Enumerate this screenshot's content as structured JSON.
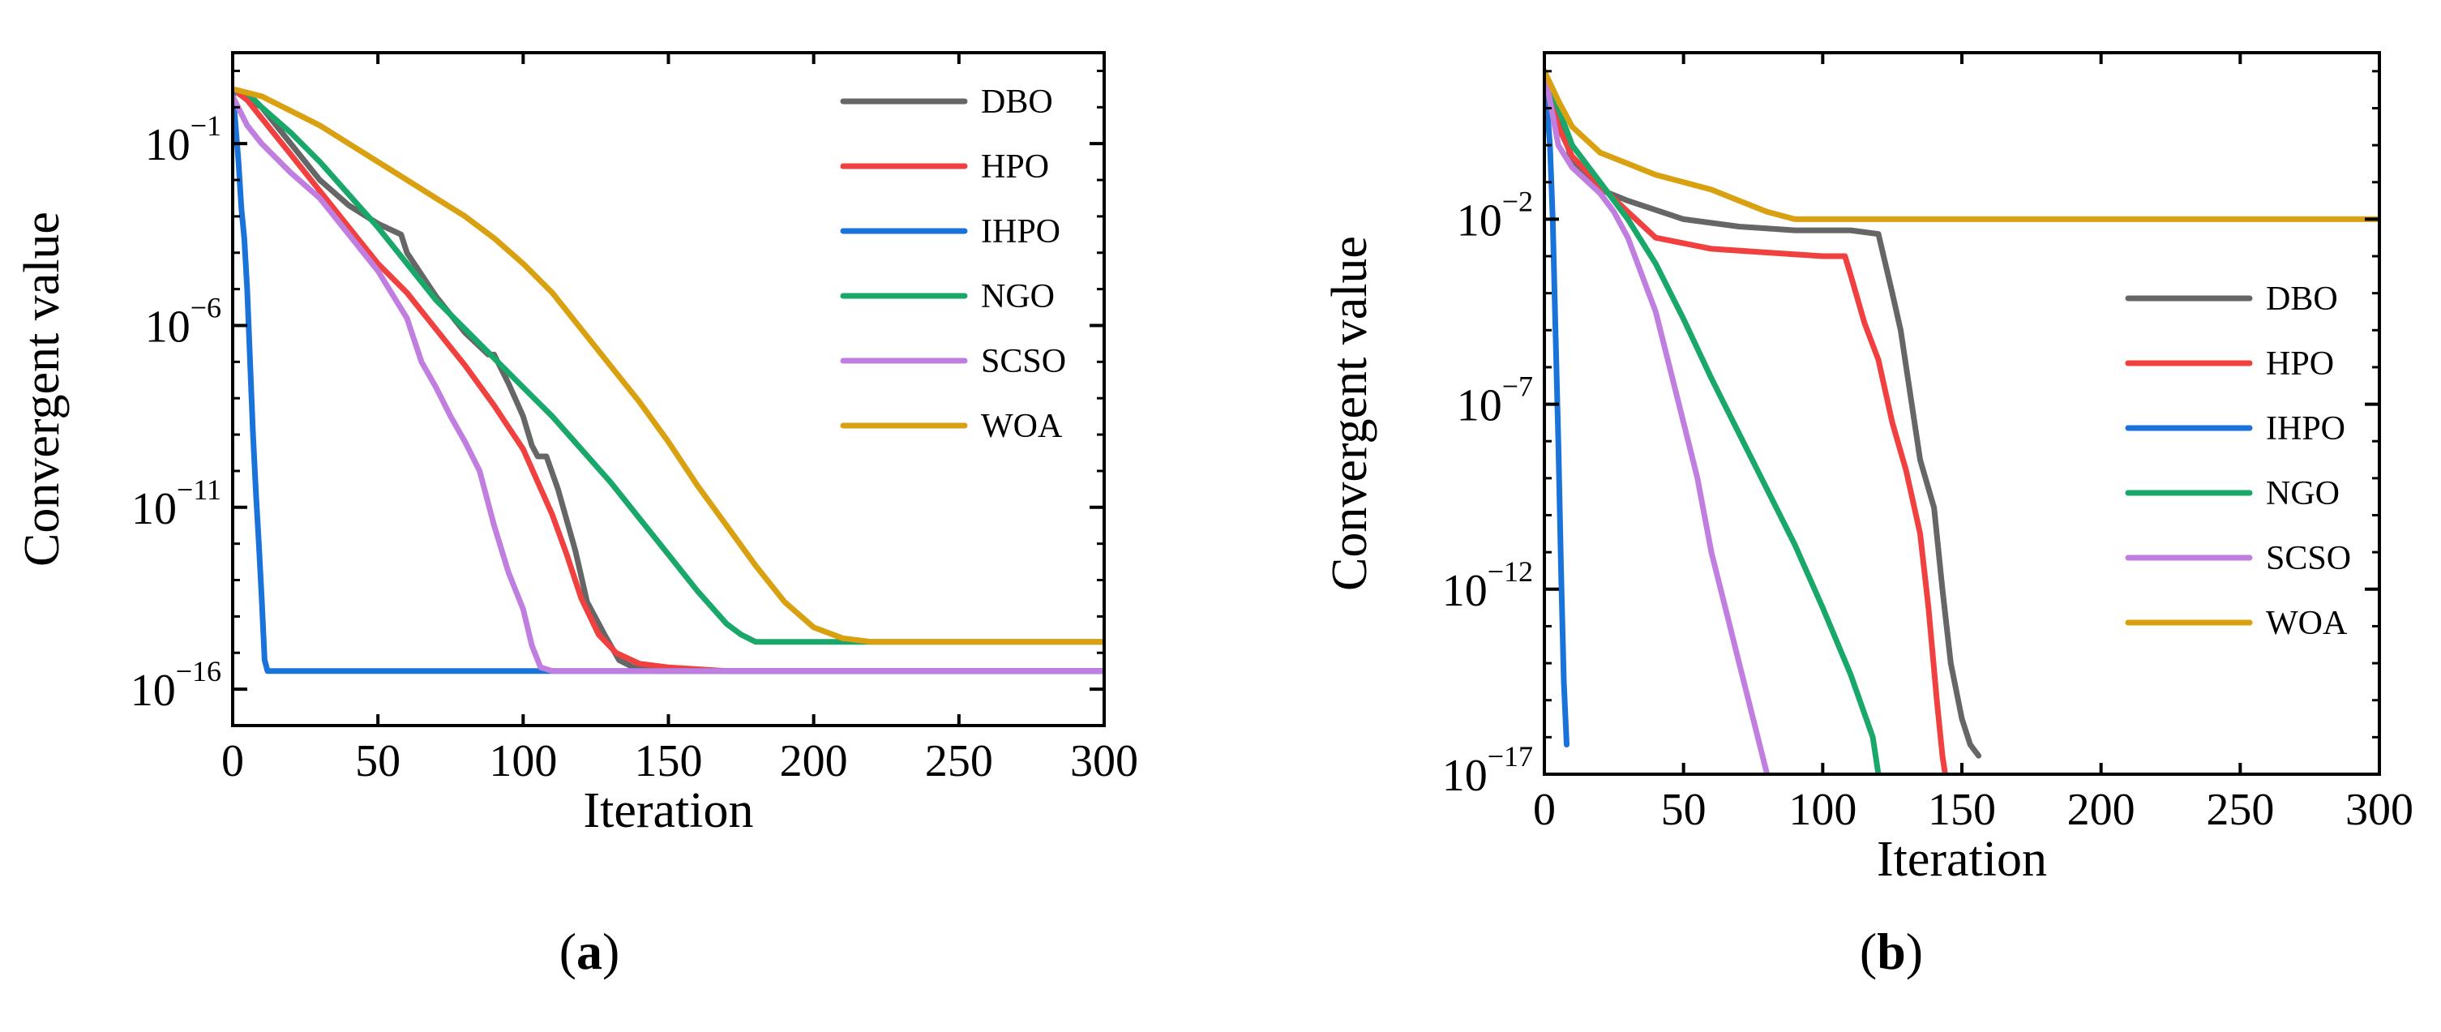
{
  "colors": {
    "DBO": "#666666",
    "HPO": "#f04040",
    "IHPO": "#1a73d9",
    "NGO": "#1aa86a",
    "SCSO": "#c07fe0",
    "WOA": "#d9a010"
  },
  "chart_data": [
    {
      "type": "line",
      "panel_label": "a",
      "caption_open": "(",
      "caption_close": ")",
      "xlabel": "Iteration",
      "ylabel": "Convergent value",
      "yscale": "log",
      "xlim": [
        0,
        300
      ],
      "ylim_exp": [
        -17,
        1.5
      ],
      "x_ticks": [
        0,
        50,
        100,
        150,
        200,
        250,
        300
      ],
      "y_ticks": [
        {
          "base": "10",
          "exp": "−1",
          "value_exp": -1
        },
        {
          "base": "10",
          "exp": "−6",
          "value_exp": -6
        },
        {
          "base": "10",
          "exp": "−11",
          "value_exp": -11
        },
        {
          "base": "10",
          "exp": "−16",
          "value_exp": -16
        }
      ],
      "legend_position": "top-right",
      "series": [
        {
          "name": "DBO",
          "points_log10": [
            [
              0,
              0.5
            ],
            [
              10,
              0
            ],
            [
              20,
              -1
            ],
            [
              30,
              -2
            ],
            [
              40,
              -2.7
            ],
            [
              50,
              -3.2
            ],
            [
              58,
              -3.5
            ],
            [
              60,
              -4
            ],
            [
              65,
              -4.6
            ],
            [
              70,
              -5.2
            ],
            [
              80,
              -6.2
            ],
            [
              88,
              -6.8
            ],
            [
              90,
              -6.8
            ],
            [
              95,
              -7.6
            ],
            [
              100,
              -8.5
            ],
            [
              103,
              -9.3
            ],
            [
              105,
              -9.6
            ],
            [
              108,
              -9.6
            ],
            [
              112,
              -10.5
            ],
            [
              118,
              -12.2
            ],
            [
              122,
              -13.6
            ],
            [
              128,
              -14.5
            ],
            [
              133,
              -15.2
            ],
            [
              138,
              -15.4
            ],
            [
              142,
              -15.4
            ],
            [
              145,
              -15.5
            ],
            [
              300,
              -15.5
            ]
          ]
        },
        {
          "name": "HPO",
          "points_log10": [
            [
              0,
              0.5
            ],
            [
              5,
              0.2
            ],
            [
              10,
              -0.3
            ],
            [
              20,
              -1.3
            ],
            [
              30,
              -2.3
            ],
            [
              40,
              -3.3
            ],
            [
              50,
              -4.3
            ],
            [
              60,
              -5.1
            ],
            [
              70,
              -6.1
            ],
            [
              80,
              -7.1
            ],
            [
              90,
              -8.2
            ],
            [
              100,
              -9.4
            ],
            [
              110,
              -11.2
            ],
            [
              115,
              -12.3
            ],
            [
              120,
              -13.5
            ],
            [
              126,
              -14.5
            ],
            [
              132,
              -15
            ],
            [
              140,
              -15.3
            ],
            [
              150,
              -15.4
            ],
            [
              160,
              -15.45
            ],
            [
              170,
              -15.5
            ],
            [
              300,
              -15.5
            ]
          ]
        },
        {
          "name": "IHPO",
          "points_log10": [
            [
              0,
              0.5
            ],
            [
              1,
              -0.5
            ],
            [
              2,
              -1.5
            ],
            [
              3,
              -2.8
            ],
            [
              4,
              -3.6
            ],
            [
              5,
              -5
            ],
            [
              6,
              -7
            ],
            [
              7,
              -9
            ],
            [
              8,
              -10.6
            ],
            [
              9,
              -12
            ],
            [
              10,
              -13.5
            ],
            [
              11,
              -15.2
            ],
            [
              12,
              -15.5
            ],
            [
              300,
              -15.5
            ]
          ]
        },
        {
          "name": "NGO",
          "points_log10": [
            [
              0,
              0.5
            ],
            [
              5,
              0.4
            ],
            [
              10,
              0
            ],
            [
              20,
              -0.7
            ],
            [
              30,
              -1.5
            ],
            [
              40,
              -2.4
            ],
            [
              50,
              -3.3
            ],
            [
              60,
              -4.3
            ],
            [
              70,
              -5.3
            ],
            [
              80,
              -6.1
            ],
            [
              90,
              -6.9
            ],
            [
              100,
              -7.7
            ],
            [
              110,
              -8.5
            ],
            [
              120,
              -9.4
            ],
            [
              130,
              -10.3
            ],
            [
              140,
              -11.3
            ],
            [
              150,
              -12.3
            ],
            [
              160,
              -13.3
            ],
            [
              170,
              -14.2
            ],
            [
              175,
              -14.5
            ],
            [
              180,
              -14.7
            ],
            [
              200,
              -14.7
            ],
            [
              300,
              -14.7
            ]
          ]
        },
        {
          "name": "SCSO",
          "points_log10": [
            [
              0,
              0.3
            ],
            [
              5,
              -0.5
            ],
            [
              10,
              -1
            ],
            [
              20,
              -1.8
            ],
            [
              30,
              -2.5
            ],
            [
              40,
              -3.5
            ],
            [
              50,
              -4.5
            ],
            [
              60,
              -5.8
            ],
            [
              65,
              -7
            ],
            [
              70,
              -7.7
            ],
            [
              75,
              -8.5
            ],
            [
              80,
              -9.2
            ],
            [
              85,
              -10
            ],
            [
              90,
              -11.5
            ],
            [
              95,
              -12.8
            ],
            [
              100,
              -13.8
            ],
            [
              103,
              -14.8
            ],
            [
              106,
              -15.4
            ],
            [
              110,
              -15.5
            ],
            [
              300,
              -15.5
            ]
          ]
        },
        {
          "name": "WOA",
          "points_log10": [
            [
              0,
              0.5
            ],
            [
              10,
              0.3
            ],
            [
              20,
              -0.1
            ],
            [
              30,
              -0.5
            ],
            [
              40,
              -1
            ],
            [
              50,
              -1.5
            ],
            [
              60,
              -2
            ],
            [
              70,
              -2.5
            ],
            [
              80,
              -3
            ],
            [
              90,
              -3.6
            ],
            [
              100,
              -4.3
            ],
            [
              110,
              -5.1
            ],
            [
              120,
              -6.1
            ],
            [
              130,
              -7.1
            ],
            [
              140,
              -8.1
            ],
            [
              150,
              -9.2
            ],
            [
              160,
              -10.4
            ],
            [
              170,
              -11.5
            ],
            [
              180,
              -12.6
            ],
            [
              190,
              -13.6
            ],
            [
              200,
              -14.3
            ],
            [
              210,
              -14.6
            ],
            [
              220,
              -14.7
            ],
            [
              300,
              -14.7
            ]
          ]
        }
      ]
    },
    {
      "type": "line",
      "panel_label": "b",
      "caption_open": "(",
      "caption_close": ")",
      "xlabel": "Iteration",
      "ylabel": "Convergent value",
      "yscale": "log",
      "xlim": [
        0,
        300
      ],
      "ylim_exp": [
        -17,
        2.5
      ],
      "x_ticks": [
        0,
        50,
        100,
        150,
        200,
        250,
        300
      ],
      "y_ticks": [
        {
          "base": "10",
          "exp": "−2",
          "value_exp": -2
        },
        {
          "base": "10",
          "exp": "−7",
          "value_exp": -7
        },
        {
          "base": "10",
          "exp": "−12",
          "value_exp": -12
        },
        {
          "base": "10",
          "exp": "−17",
          "value_exp": -17
        }
      ],
      "legend_position": "center-right",
      "series": [
        {
          "name": "DBO",
          "points_log10": [
            [
              0,
              2
            ],
            [
              5,
              1
            ],
            [
              10,
              -0.5
            ],
            [
              20,
              -1.2
            ],
            [
              30,
              -1.5
            ],
            [
              50,
              -2
            ],
            [
              70,
              -2.2
            ],
            [
              90,
              -2.3
            ],
            [
              110,
              -2.3
            ],
            [
              120,
              -2.4
            ],
            [
              125,
              -4
            ],
            [
              128,
              -5
            ],
            [
              132,
              -7
            ],
            [
              135,
              -8.5
            ],
            [
              140,
              -9.8
            ],
            [
              143,
              -12
            ],
            [
              146,
              -14
            ],
            [
              150,
              -15.5
            ],
            [
              153,
              -16.2
            ],
            [
              156,
              -16.5
            ]
          ]
        },
        {
          "name": "HPO",
          "points_log10": [
            [
              0,
              2
            ],
            [
              5,
              0.5
            ],
            [
              10,
              -0.3
            ],
            [
              20,
              -1.1
            ],
            [
              30,
              -1.8
            ],
            [
              40,
              -2.5
            ],
            [
              60,
              -2.8
            ],
            [
              80,
              -2.9
            ],
            [
              100,
              -3
            ],
            [
              108,
              -3
            ],
            [
              110,
              -3.5
            ],
            [
              115,
              -4.8
            ],
            [
              120,
              -5.8
            ],
            [
              125,
              -7.5
            ],
            [
              130,
              -8.8
            ],
            [
              135,
              -10.5
            ],
            [
              138,
              -12.5
            ],
            [
              141,
              -15
            ],
            [
              143,
              -16.5
            ],
            [
              144,
              -17
            ]
          ]
        },
        {
          "name": "IHPO",
          "points_log10": [
            [
              0,
              2
            ],
            [
              1,
              1
            ],
            [
              2,
              0
            ],
            [
              3,
              -2
            ],
            [
              4,
              -5
            ],
            [
              5,
              -8
            ],
            [
              6,
              -11.5
            ],
            [
              7,
              -14.5
            ],
            [
              8,
              -16.2
            ]
          ]
        },
        {
          "name": "NGO",
          "points_log10": [
            [
              0,
              2
            ],
            [
              5,
              1
            ],
            [
              10,
              0
            ],
            [
              20,
              -1
            ],
            [
              30,
              -2
            ],
            [
              40,
              -3.2
            ],
            [
              50,
              -4.7
            ],
            [
              60,
              -6.3
            ],
            [
              70,
              -7.8
            ],
            [
              80,
              -9.3
            ],
            [
              90,
              -10.8
            ],
            [
              100,
              -12.5
            ],
            [
              110,
              -14.3
            ],
            [
              118,
              -16
            ],
            [
              120,
              -17
            ]
          ]
        },
        {
          "name": "SCSO",
          "points_log10": [
            [
              0,
              2
            ],
            [
              5,
              0
            ],
            [
              10,
              -0.6
            ],
            [
              20,
              -1.3
            ],
            [
              25,
              -1.8
            ],
            [
              30,
              -2.5
            ],
            [
              40,
              -4.5
            ],
            [
              45,
              -6
            ],
            [
              50,
              -7.5
            ],
            [
              55,
              -9
            ],
            [
              60,
              -11
            ],
            [
              65,
              -12.5
            ],
            [
              70,
              -14
            ],
            [
              75,
              -15.5
            ],
            [
              80,
              -17
            ]
          ]
        },
        {
          "name": "WOA",
          "points_log10": [
            [
              0,
              2
            ],
            [
              5,
              1.2
            ],
            [
              10,
              0.5
            ],
            [
              20,
              -0.2
            ],
            [
              30,
              -0.5
            ],
            [
              40,
              -0.8
            ],
            [
              50,
              -1
            ],
            [
              60,
              -1.2
            ],
            [
              70,
              -1.5
            ],
            [
              80,
              -1.8
            ],
            [
              90,
              -2
            ],
            [
              100,
              -2
            ],
            [
              300,
              -2
            ]
          ]
        }
      ]
    }
  ]
}
